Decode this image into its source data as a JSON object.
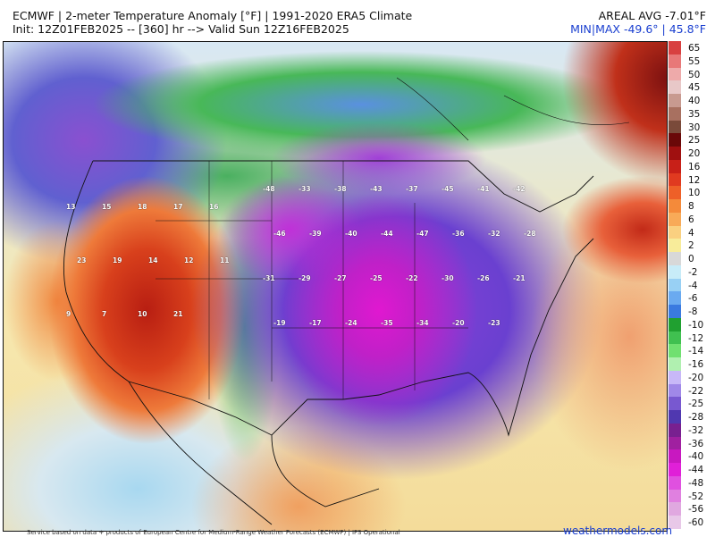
{
  "header": {
    "title": "ECMWF | 2-meter Temperature Anomaly [°F] | 1991-2020 ERA5 Climate",
    "init": "Init: 12Z01FEB2025 -- [360] hr --> Valid Sun 12Z16FEB2025",
    "areal_avg": "AREAL AVG -7.01°F",
    "min_max": "MIN|MAX -49.6° | 45.8°F"
  },
  "colorbar": {
    "labels": [
      "65",
      "55",
      "50",
      "45",
      "40",
      "35",
      "30",
      "25",
      "20",
      "16",
      "12",
      "10",
      "8",
      "6",
      "4",
      "2",
      "0",
      "-2",
      "-4",
      "-6",
      "-8",
      "-10",
      "-12",
      "-14",
      "-16",
      "-20",
      "-22",
      "-25",
      "-28",
      "-32",
      "-36",
      "-40",
      "-44",
      "-48",
      "-52",
      "-56",
      "-60"
    ],
    "colors": [
      "#d84040",
      "#e87878",
      "#eeaaaa",
      "#e8c8c8",
      "#c89a90",
      "#a87060",
      "#7a4a3a",
      "#6a0808",
      "#a01010",
      "#c82018",
      "#e03a20",
      "#ee6028",
      "#f48a3a",
      "#f8aa58",
      "#fad080",
      "#f8ec9a",
      "#d8d8d8",
      "#c8ecf8",
      "#98d0f4",
      "#6aaaf0",
      "#3a7ae0",
      "#20a030",
      "#40c050",
      "#70e070",
      "#b0f0b0",
      "#c8b8f8",
      "#a088e8",
      "#7858d0",
      "#5038b0",
      "#782090",
      "#a020a0",
      "#c818c0",
      "#e020d8",
      "#e050e0",
      "#e080e0",
      "#e0a8e0",
      "#e8c8e8"
    ]
  },
  "station_values": [
    "-48",
    "-33",
    "-38",
    "-43",
    "-37",
    "-45",
    "-41",
    "-42",
    "-46",
    "-39",
    "-40",
    "-44",
    "-47",
    "-36",
    "-32",
    "-28",
    "-31",
    "-29",
    "-27",
    "-25",
    "-22",
    "-30",
    "-26",
    "-21",
    "-19",
    "-17",
    "13",
    "15",
    "18",
    "17",
    "16",
    "23",
    "19",
    "14",
    "12",
    "11",
    "9",
    "7",
    "10",
    "21",
    "-24",
    "-35",
    "-34",
    "-20",
    "-23"
  ],
  "footer": {
    "credit": "Service based on data + products of European Centre for Medium-Range Weather Forecasts (ECMWF) | IFS Operational",
    "brand": "weathermodels.com"
  }
}
